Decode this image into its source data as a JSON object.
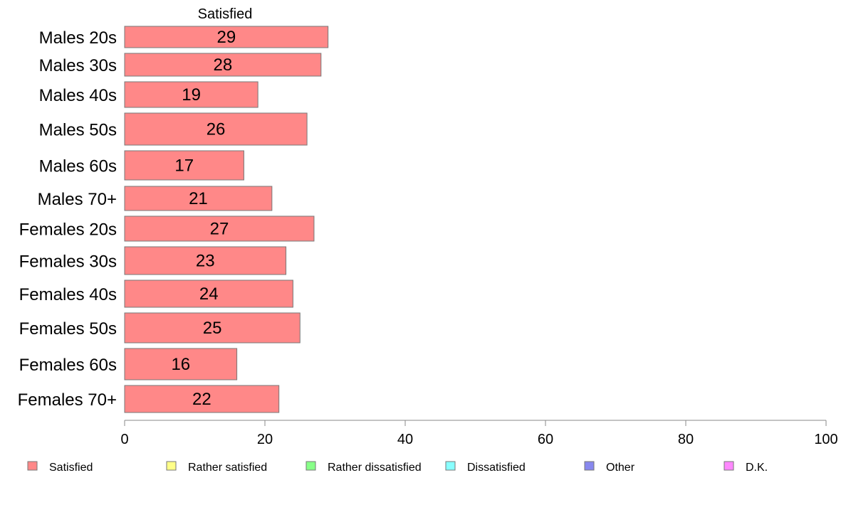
{
  "chart_data": {
    "type": "bar",
    "orientation": "horizontal",
    "stacked": true,
    "series_header": "Satisfied",
    "categories": [
      "Males 20s",
      "Males 30s",
      "Males 40s",
      "Males 50s",
      "Males 60s",
      "Males 70+",
      "Females 20s",
      "Females 30s",
      "Females 40s",
      "Females 50s",
      "Females 60s",
      "Females 70+"
    ],
    "series": [
      {
        "name": "Satisfied",
        "color": "#ff8888",
        "values": [
          29,
          28,
          19,
          26,
          17,
          21,
          27,
          23,
          24,
          25,
          16,
          22
        ]
      }
    ],
    "xlim": [
      0,
      100
    ],
    "xticks": [
      0,
      20,
      40,
      60,
      80,
      100
    ],
    "grid": false,
    "legend_position": "bottom",
    "legend": [
      {
        "label": "Satisfied",
        "color": "#ff8888"
      },
      {
        "label": "Rather satisfied",
        "color": "#ffff88"
      },
      {
        "label": "Rather dissatisfied",
        "color": "#88ff88"
      },
      {
        "label": "Dissatisfied",
        "color": "#88ffff"
      },
      {
        "label": "Other",
        "color": "#8888ee"
      },
      {
        "label": "D.K.",
        "color": "#ff88ff"
      }
    ]
  }
}
